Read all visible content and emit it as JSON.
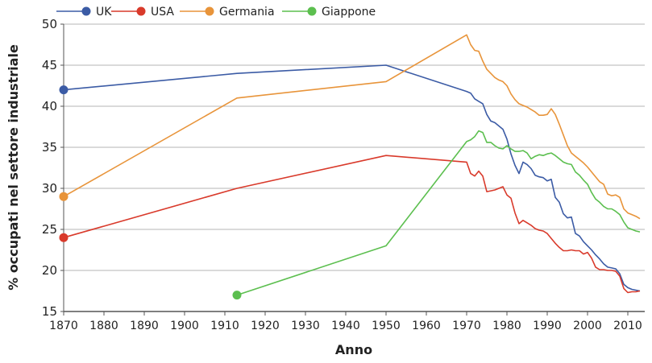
{
  "chart_data": {
    "type": "line",
    "title": "",
    "xlabel": "Anno",
    "ylabel": "% occupati nel settore industriale",
    "xlim": [
      1870,
      2013
    ],
    "ylim": [
      15,
      50
    ],
    "xticks": [
      1870,
      1880,
      1890,
      1900,
      1910,
      1920,
      1930,
      1940,
      1950,
      1960,
      1970,
      1980,
      1990,
      2000,
      2010
    ],
    "yticks": [
      15,
      20,
      25,
      30,
      35,
      40,
      45,
      50
    ],
    "grid": "horizontal",
    "legend_position": "top",
    "series": [
      {
        "name": "UK",
        "color": "#3b5ba5",
        "x": [
          1870,
          1913,
          1950,
          1970,
          1971,
          1972,
          1973,
          1974,
          1975,
          1976,
          1977,
          1978,
          1979,
          1980,
          1981,
          1982,
          1983,
          1984,
          1985,
          1986,
          1987,
          1988,
          1989,
          1990,
          1991,
          1992,
          1993,
          1994,
          1995,
          1996,
          1997,
          1998,
          1999,
          2000,
          2001,
          2002,
          2003,
          2004,
          2005,
          2006,
          2007,
          2008,
          2009,
          2010,
          2011,
          2012,
          2013
        ],
        "y": [
          42,
          44,
          45,
          41.8,
          41.6,
          40.9,
          40.6,
          40.3,
          39.0,
          38.2,
          38.0,
          37.6,
          37.2,
          36.0,
          34.2,
          32.8,
          31.8,
          33.2,
          32.9,
          32.4,
          31.6,
          31.4,
          31.3,
          30.9,
          31.1,
          28.9,
          28.3,
          26.9,
          26.4,
          26.5,
          24.5,
          24.2,
          23.5,
          23.0,
          22.5,
          21.9,
          21.4,
          20.8,
          20.4,
          20.3,
          20.2,
          19.6,
          18.3,
          17.9,
          17.7,
          17.6,
          17.5
        ]
      },
      {
        "name": "USA",
        "color": "#d93a2b",
        "x": [
          1870,
          1913,
          1950,
          1970,
          1971,
          1972,
          1973,
          1974,
          1975,
          1976,
          1977,
          1978,
          1979,
          1980,
          1981,
          1982,
          1983,
          1984,
          1985,
          1986,
          1987,
          1988,
          1989,
          1990,
          1991,
          1992,
          1993,
          1994,
          1995,
          1996,
          1997,
          1998,
          1999,
          2000,
          2001,
          2002,
          2003,
          2004,
          2005,
          2006,
          2007,
          2008,
          2009,
          2010,
          2011,
          2012,
          2013
        ],
        "y": [
          24,
          30,
          34,
          33.2,
          31.8,
          31.5,
          32.1,
          31.5,
          29.6,
          29.7,
          29.8,
          30.0,
          30.2,
          29.2,
          28.8,
          27.0,
          25.7,
          26.1,
          25.8,
          25.5,
          25.1,
          24.9,
          24.8,
          24.5,
          23.9,
          23.3,
          22.8,
          22.4,
          22.4,
          22.5,
          22.4,
          22.4,
          22.0,
          22.2,
          21.5,
          20.4,
          20.1,
          20.1,
          20.0,
          20.0,
          19.9,
          19.3,
          17.8,
          17.3,
          17.4,
          17.4,
          17.5
        ]
      },
      {
        "name": "Germania",
        "color": "#e8943a",
        "x": [
          1870,
          1913,
          1950,
          1970,
          1971,
          1972,
          1973,
          1974,
          1975,
          1976,
          1977,
          1978,
          1979,
          1980,
          1981,
          1982,
          1983,
          1984,
          1985,
          1986,
          1987,
          1988,
          1989,
          1990,
          1991,
          1992,
          1993,
          1994,
          1995,
          1996,
          1997,
          1998,
          1999,
          2000,
          2001,
          2002,
          2003,
          2004,
          2005,
          2006,
          2007,
          2008,
          2009,
          2010,
          2011,
          2012,
          2013
        ],
        "y": [
          29,
          41,
          43,
          48.7,
          47.5,
          46.8,
          46.7,
          45.5,
          44.5,
          44.0,
          43.5,
          43.2,
          43.0,
          42.5,
          41.5,
          40.8,
          40.3,
          40.1,
          39.9,
          39.6,
          39.3,
          38.9,
          38.9,
          39.0,
          39.7,
          39.0,
          37.8,
          36.5,
          35.2,
          34.3,
          33.9,
          33.5,
          33.1,
          32.6,
          32.0,
          31.4,
          30.8,
          30.5,
          29.3,
          29.1,
          29.2,
          28.9,
          27.5,
          27.0,
          26.8,
          26.6,
          26.3
        ]
      },
      {
        "name": "Giappone",
        "color": "#5cbf4f",
        "x": [
          1913,
          1950,
          1970,
          1971,
          1972,
          1973,
          1974,
          1975,
          1976,
          1977,
          1978,
          1979,
          1980,
          1981,
          1982,
          1983,
          1984,
          1985,
          1986,
          1987,
          1988,
          1989,
          1990,
          1991,
          1992,
          1993,
          1994,
          1995,
          1996,
          1997,
          1998,
          1999,
          2000,
          2001,
          2002,
          2003,
          2004,
          2005,
          2006,
          2007,
          2008,
          2009,
          2010,
          2011,
          2012,
          2013
        ],
        "y": [
          17,
          23,
          35.7,
          35.9,
          36.3,
          37.0,
          36.8,
          35.6,
          35.6,
          35.2,
          34.9,
          34.8,
          35.2,
          34.8,
          34.5,
          34.5,
          34.6,
          34.3,
          33.6,
          33.9,
          34.1,
          34.0,
          34.2,
          34.3,
          34.0,
          33.6,
          33.2,
          33.0,
          32.9,
          32.0,
          31.6,
          31.0,
          30.5,
          29.5,
          28.7,
          28.3,
          27.8,
          27.5,
          27.5,
          27.2,
          26.8,
          25.9,
          25.2,
          25.0,
          24.8,
          24.7
        ]
      }
    ]
  }
}
